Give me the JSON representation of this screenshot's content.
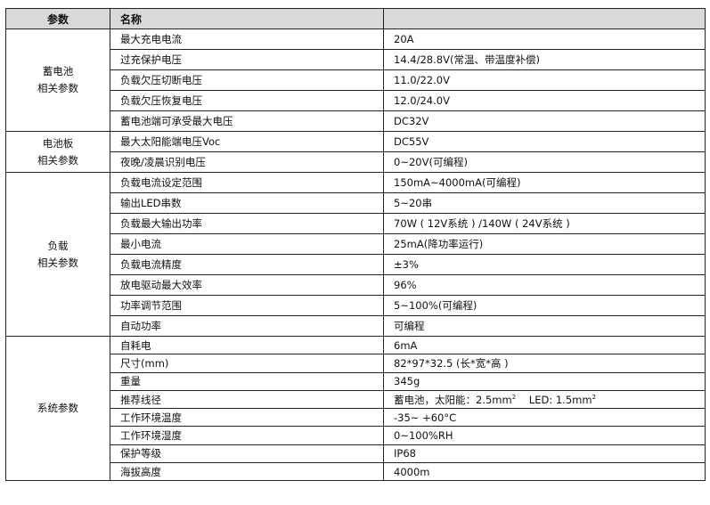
{
  "header": {
    "col1": "参数",
    "col2": "名称",
    "col3": ""
  },
  "groups": [
    {
      "label": [
        "蓄电池",
        "相关参数"
      ],
      "rows": [
        {
          "name": "最大充电电流",
          "value": "20A"
        },
        {
          "name": "过充保护电压",
          "value": "14.4/28.8V(常温、带温度补偿)"
        },
        {
          "name": "负载欠压切断电压",
          "value": "11.0/22.0V"
        },
        {
          "name": "负载欠压恢复电压",
          "value": "12.0/24.0V"
        },
        {
          "name": "蓄电池端可承受最大电压",
          "value": "DC32V"
        }
      ]
    },
    {
      "label": [
        "电池板",
        "相关参数"
      ],
      "rows": [
        {
          "name": "最大太阳能端电压Voc",
          "value": "DC55V"
        },
        {
          "name": "夜晚/凌晨识别电压",
          "value": "0~20V(可编程)"
        }
      ]
    },
    {
      "label": [
        "负载",
        "相关参数"
      ],
      "rows": [
        {
          "name": "负载电流设定范围",
          "value": "150mA~4000mA(可编程)"
        },
        {
          "name": "输出LED串数",
          "value": "5~20串"
        },
        {
          "name": "负载最大输出功率",
          "value": "70W ( 12V系统 ) /140W ( 24V系统 )"
        },
        {
          "name": "最小电流",
          "value": "25mA(降功率运行)"
        },
        {
          "name": "负载电流精度",
          "value": "±3%"
        },
        {
          "name": "放电驱动最大效率",
          "value": "96%"
        },
        {
          "name": "功率调节范围",
          "value": "5~100%(可编程)"
        },
        {
          "name": "自动功率",
          "value": "可编程"
        }
      ]
    },
    {
      "label": [
        "系统参数"
      ],
      "rows": [
        {
          "name": "自耗电",
          "value": "6mA"
        },
        {
          "name": "尺寸(mm)",
          "value": "82*97*32.5 (长*宽*高 )"
        },
        {
          "name": "重量",
          "value": "345g"
        },
        {
          "name": "推荐线径",
          "value_a": "蓄电池，太阳能：2.5mm",
          "sup_a": "2",
          "value_b": "LED: 1.5mm",
          "sup_b": "2"
        },
        {
          "name": "工作环境温度",
          "value": "-35~ +60°C"
        },
        {
          "name": "工作环境湿度",
          "value": "0~100%RH"
        },
        {
          "name": "保护等级",
          "value": "IP68"
        },
        {
          "name": "海拔高度",
          "value": "4000m"
        }
      ]
    }
  ]
}
